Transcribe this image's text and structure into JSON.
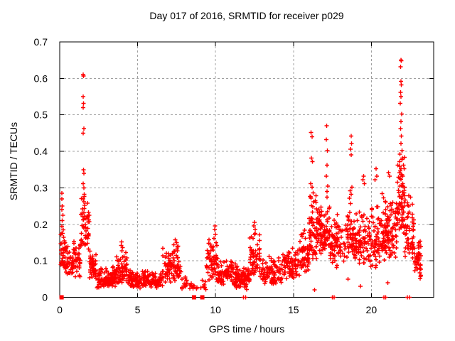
{
  "chart_data": {
    "type": "scatter",
    "title": "Day 017 of 2016, SRMTID for receiver p029",
    "xlabel": "GPS time / hours",
    "ylabel": "SRMTID / TECUs",
    "xlim": [
      0,
      24
    ],
    "ylim": [
      0,
      0.7
    ],
    "xticks": [
      0,
      5,
      10,
      15,
      20
    ],
    "xtick_labels": [
      "0",
      "5",
      "10",
      "15",
      "20"
    ],
    "yticks": [
      0,
      0.1,
      0.2,
      0.3,
      0.4,
      0.5,
      0.6,
      0.7
    ],
    "ytick_labels": [
      "0",
      "0.1",
      "0.2",
      "0.3",
      "0.4",
      "0.5",
      "0.6",
      "0.7"
    ],
    "grid": "dashed",
    "legend": "none",
    "background_color": "#ffffff",
    "marker": "plus",
    "marker_color": "#ff0000",
    "axis_color": "#000000",
    "grid_color": "#a0a0a0",
    "seed": 2016017,
    "spike_points": [
      [
        0.13,
        0.285
      ],
      [
        0.13,
        0.27
      ],
      [
        0.16,
        0.25
      ],
      [
        0.13,
        0.24
      ],
      [
        0.2,
        0.225
      ],
      [
        0.16,
        0.21
      ],
      [
        0.13,
        0.195
      ],
      [
        0.22,
        0.185
      ],
      [
        0.18,
        0.175
      ],
      [
        0.25,
        0.165
      ],
      [
        0.3,
        0.155
      ],
      [
        0.35,
        0.15
      ],
      [
        1.5,
        0.61
      ],
      [
        1.53,
        0.607
      ],
      [
        1.51,
        0.55
      ],
      [
        1.53,
        0.532
      ],
      [
        1.5,
        0.52
      ],
      [
        1.54,
        0.462
      ],
      [
        1.5,
        0.45
      ],
      [
        1.52,
        0.35
      ],
      [
        1.55,
        0.34
      ],
      [
        1.5,
        0.312
      ],
      [
        1.55,
        0.3
      ],
      [
        1.58,
        0.282
      ],
      [
        1.5,
        0.27
      ],
      [
        1.54,
        0.262
      ],
      [
        1.59,
        0.252
      ],
      [
        1.46,
        0.242
      ],
      [
        1.55,
        0.232
      ],
      [
        1.6,
        0.222
      ],
      [
        1.5,
        0.212
      ],
      [
        1.64,
        0.2
      ],
      [
        1.55,
        0.19
      ],
      [
        1.68,
        0.182
      ],
      [
        1.72,
        0.165
      ],
      [
        1.78,
        0.148
      ],
      [
        1.84,
        0.132
      ],
      [
        3.98,
        0.152
      ],
      [
        3.94,
        0.142
      ],
      [
        4.04,
        0.136
      ],
      [
        4.0,
        0.128
      ],
      [
        7.42,
        0.158
      ],
      [
        7.5,
        0.15
      ],
      [
        7.32,
        0.144
      ],
      [
        7.55,
        0.138
      ],
      [
        9.98,
        0.196
      ],
      [
        9.94,
        0.186
      ],
      [
        10.0,
        0.172
      ],
      [
        9.9,
        0.162
      ],
      [
        10.04,
        0.15
      ],
      [
        10.08,
        0.142
      ],
      [
        12.5,
        0.205
      ],
      [
        12.46,
        0.196
      ],
      [
        12.55,
        0.186
      ],
      [
        12.5,
        0.172
      ],
      [
        12.42,
        0.162
      ],
      [
        16.14,
        0.452
      ],
      [
        16.2,
        0.44
      ],
      [
        16.15,
        0.382
      ],
      [
        16.22,
        0.372
      ],
      [
        16.1,
        0.312
      ],
      [
        16.2,
        0.302
      ],
      [
        16.26,
        0.286
      ],
      [
        16.14,
        0.272
      ],
      [
        16.3,
        0.262
      ],
      [
        16.35,
        0.02
      ],
      [
        17.14,
        0.47
      ],
      [
        17.12,
        0.432
      ],
      [
        17.18,
        0.402
      ],
      [
        17.15,
        0.362
      ],
      [
        17.1,
        0.332
      ],
      [
        17.2,
        0.305
      ],
      [
        17.16,
        0.29
      ],
      [
        18.7,
        0.442
      ],
      [
        18.73,
        0.422
      ],
      [
        18.67,
        0.406
      ],
      [
        18.7,
        0.39
      ],
      [
        18.76,
        0.302
      ],
      [
        18.64,
        0.292
      ],
      [
        18.7,
        0.282
      ],
      [
        18.6,
        0.272
      ],
      [
        18.5,
        0.05
      ],
      [
        19.5,
        0.332
      ],
      [
        19.46,
        0.322
      ],
      [
        19.55,
        0.312
      ],
      [
        19.3,
        0.03
      ],
      [
        20.3,
        0.352
      ],
      [
        20.36,
        0.332
      ],
      [
        20.24,
        0.322
      ],
      [
        21.1,
        0.342
      ],
      [
        21.16,
        0.332
      ],
      [
        21.05,
        0.04
      ],
      [
        21.9,
        0.65
      ],
      [
        21.92,
        0.648
      ],
      [
        21.88,
        0.632
      ],
      [
        21.9,
        0.592
      ],
      [
        21.93,
        0.582
      ],
      [
        21.87,
        0.562
      ],
      [
        21.9,
        0.55
      ],
      [
        21.86,
        0.532
      ],
      [
        21.94,
        0.502
      ],
      [
        21.9,
        0.482
      ],
      [
        21.87,
        0.462
      ],
      [
        21.93,
        0.442
      ],
      [
        21.9,
        0.422
      ],
      [
        21.96,
        0.402
      ],
      [
        21.84,
        0.392
      ],
      [
        22.0,
        0.382
      ],
      [
        21.8,
        0.372
      ],
      [
        22.06,
        0.362
      ],
      [
        21.9,
        0.352
      ],
      [
        21.82,
        0.342
      ],
      [
        22.02,
        0.332
      ],
      [
        23.05,
        0.15
      ],
      [
        23.1,
        0.12
      ],
      [
        23.15,
        0.09
      ],
      [
        23.18,
        0.06
      ]
    ],
    "zero_square_hours": [
      0.12,
      8.62,
      9.15
    ],
    "zero_plus_hours": [
      11.8,
      11.93,
      17.5,
      17.62,
      20.8,
      20.92,
      22.32,
      22.44
    ],
    "baseline_bins": [
      [
        0.05,
        0.4,
        0.07,
        0.2,
        30
      ],
      [
        0.3,
        1.35,
        0.05,
        0.165,
        75
      ],
      [
        1.35,
        1.9,
        0.13,
        0.3,
        35
      ],
      [
        1.9,
        2.35,
        0.05,
        0.13,
        45
      ],
      [
        2.35,
        3.6,
        0.025,
        0.085,
        115
      ],
      [
        3.6,
        4.35,
        0.04,
        0.14,
        60
      ],
      [
        4.35,
        6.6,
        0.025,
        0.08,
        165
      ],
      [
        6.6,
        7.8,
        0.04,
        0.15,
        85
      ],
      [
        7.8,
        8.6,
        0.02,
        0.06,
        25
      ],
      [
        8.6,
        9.4,
        0.015,
        0.05,
        12
      ],
      [
        9.4,
        10.15,
        0.04,
        0.18,
        55
      ],
      [
        10.15,
        11.3,
        0.03,
        0.11,
        80
      ],
      [
        11.3,
        12.2,
        0.02,
        0.095,
        85
      ],
      [
        12.2,
        12.85,
        0.06,
        0.19,
        55
      ],
      [
        12.85,
        14.3,
        0.035,
        0.115,
        95
      ],
      [
        14.3,
        15.4,
        0.05,
        0.14,
        75
      ],
      [
        15.4,
        16.0,
        0.07,
        0.19,
        55
      ],
      [
        16.0,
        16.5,
        0.1,
        0.3,
        55
      ],
      [
        16.5,
        17.05,
        0.12,
        0.28,
        60
      ],
      [
        17.05,
        17.35,
        0.12,
        0.3,
        30
      ],
      [
        17.35,
        18.25,
        0.08,
        0.24,
        70
      ],
      [
        18.25,
        19.0,
        0.1,
        0.27,
        65
      ],
      [
        19.0,
        20.6,
        0.08,
        0.26,
        130
      ],
      [
        20.6,
        21.65,
        0.1,
        0.3,
        115
      ],
      [
        21.65,
        22.15,
        0.16,
        0.4,
        65
      ],
      [
        22.15,
        22.75,
        0.1,
        0.3,
        55
      ],
      [
        22.75,
        23.2,
        0.05,
        0.2,
        40
      ]
    ]
  }
}
